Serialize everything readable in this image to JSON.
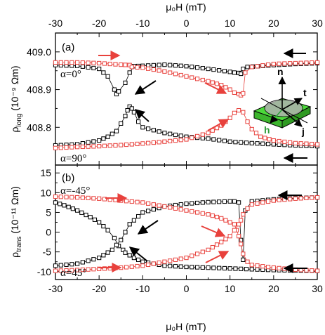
{
  "figure": {
    "x_axis_label_top": "μ₀H (mT)",
    "x_axis_label_bottom": "μ₀H (mT)",
    "colors": {
      "black_series": "#000000",
      "red_series": "#e8413c",
      "inset_green": "#4bd93a",
      "inset_grey": "#b0b0b0"
    }
  },
  "chart_data": [
    {
      "panel": "(a)",
      "type": "scatter",
      "xlabel": "μ₀H (mT)",
      "ylabel_main": "ρ",
      "ylabel_sub": "long",
      "ylabel_units": " (10⁻⁹ Ωm)",
      "xlim": [
        -30,
        30
      ],
      "ylim": [
        408.7,
        409.05
      ],
      "xticks": [
        "-30",
        "-20",
        "-10",
        "0",
        "10",
        "20",
        "30"
      ],
      "yticks": [
        {
          "value": 408.8,
          "label": "408.8"
        },
        {
          "value": 408.9,
          "label": "408.9"
        },
        {
          "value": 409.0,
          "label": "409.0"
        }
      ],
      "annotations": [
        {
          "text": "α=0°",
          "x": -28.5,
          "y": 408.92
        },
        {
          "text": "α=90°",
          "x": -28.5,
          "y": 408.705
        }
      ],
      "series": [
        {
          "color": "black",
          "marker": "open-square",
          "points": [
            [
              -30,
              408.965
            ],
            [
              -25,
              408.963
            ],
            [
              -20,
              408.955
            ],
            [
              -18,
              408.935
            ],
            [
              -16.5,
              408.9
            ],
            [
              -16,
              408.888
            ],
            [
              -15.5,
              408.895
            ],
            [
              -14,
              408.918
            ],
            [
              -13,
              408.945
            ],
            [
              -12,
              408.962
            ],
            [
              -10,
              408.963
            ],
            [
              -5,
              408.966
            ],
            [
              0,
              408.962
            ],
            [
              5,
              408.955
            ],
            [
              10,
              408.947
            ],
            [
              11,
              408.945
            ],
            [
              12,
              408.944
            ],
            [
              12.5,
              408.942
            ],
            [
              13,
              408.955
            ],
            [
              14,
              408.96
            ],
            [
              20,
              408.965
            ],
            [
              25,
              408.968
            ],
            [
              30,
              408.97
            ]
          ]
        },
        {
          "color": "red",
          "marker": "open-square",
          "points": [
            [
              -30,
              408.972
            ],
            [
              -25,
              408.972
            ],
            [
              -20,
              408.97
            ],
            [
              -15,
              408.966
            ],
            [
              -13,
              408.965
            ],
            [
              -12.5,
              408.96
            ],
            [
              -10,
              408.958
            ],
            [
              -5,
              408.948
            ],
            [
              0,
              408.935
            ],
            [
              5,
              408.922
            ],
            [
              8,
              408.912
            ],
            [
              10,
              408.9
            ],
            [
              11,
              408.892
            ],
            [
              12,
              408.888
            ],
            [
              12.5,
              408.885
            ],
            [
              13,
              408.89
            ],
            [
              13.5,
              408.945
            ],
            [
              15,
              408.96
            ],
            [
              20,
              408.968
            ],
            [
              25,
              408.97
            ],
            [
              30,
              408.972
            ]
          ]
        },
        {
          "color": "black",
          "marker": "open-square",
          "points": [
            [
              -30,
              408.752
            ],
            [
              -25,
              408.755
            ],
            [
              -20,
              408.765
            ],
            [
              -18,
              408.775
            ],
            [
              -16,
              408.79
            ],
            [
              -15,
              408.81
            ],
            [
              -14,
              408.83
            ],
            [
              -13.5,
              408.845
            ],
            [
              -13,
              408.855
            ],
            [
              -12.5,
              408.85
            ],
            [
              -12,
              408.84
            ],
            [
              -11,
              408.815
            ],
            [
              -10,
              408.8
            ],
            [
              -5,
              408.785
            ],
            [
              0,
              408.775
            ],
            [
              5,
              408.77
            ],
            [
              10,
              408.762
            ],
            [
              15,
              408.758
            ],
            [
              20,
              408.755
            ],
            [
              25,
              408.752
            ],
            [
              30,
              408.75
            ]
          ]
        },
        {
          "color": "red",
          "marker": "open-square",
          "points": [
            [
              -30,
              408.745
            ],
            [
              -25,
              408.748
            ],
            [
              -20,
              408.75
            ],
            [
              -15,
              408.753
            ],
            [
              -10,
              408.757
            ],
            [
              -5,
              408.762
            ],
            [
              0,
              408.768
            ],
            [
              5,
              408.785
            ],
            [
              8,
              408.805
            ],
            [
              10,
              408.825
            ],
            [
              11,
              408.838
            ],
            [
              12,
              408.845
            ],
            [
              13,
              408.84
            ],
            [
              14,
              408.815
            ],
            [
              15,
              408.795
            ],
            [
              17,
              408.775
            ],
            [
              20,
              408.765
            ],
            [
              25,
              408.758
            ],
            [
              30,
              408.755
            ]
          ]
        }
      ]
    },
    {
      "panel": "(b)",
      "type": "scatter",
      "xlabel": "μ₀H (mT)",
      "ylabel_main": "ρ",
      "ylabel_sub": "trans",
      "ylabel_units": " (10⁻¹¹ Ωm)",
      "xlim": [
        -30,
        30
      ],
      "ylim": [
        -12,
        17
      ],
      "xticks": [
        "-30",
        "-20",
        "-10",
        "0",
        "10",
        "20",
        "30"
      ],
      "yticks": [
        {
          "value": -10,
          "label": "-10"
        },
        {
          "value": -5,
          "label": "-5"
        },
        {
          "value": 0,
          "label": "0"
        },
        {
          "value": 5,
          "label": "5"
        },
        {
          "value": 10,
          "label": "10"
        },
        {
          "value": 15,
          "label": "15"
        }
      ],
      "annotations": [
        {
          "text": "α=-45°",
          "x": -28.5,
          "y": 11.5
        },
        {
          "text": "α=45°",
          "x": -28.5,
          "y": -12.0
        }
      ],
      "series": [
        {
          "color": "black",
          "marker": "open-square",
          "points": [
            [
              -30,
              7.5
            ],
            [
              -28,
              6.8
            ],
            [
              -25,
              5.5
            ],
            [
              -22,
              3.8
            ],
            [
              -20,
              2.5
            ],
            [
              -18,
              0.5
            ],
            [
              -16.5,
              -1.5
            ],
            [
              -15.5,
              -3.5
            ],
            [
              -14.5,
              -4.5
            ],
            [
              -14,
              -5.2
            ],
            [
              -12,
              -6.5
            ],
            [
              -10,
              -7.5
            ],
            [
              -5,
              -8.5
            ],
            [
              0,
              -8.8
            ],
            [
              5,
              -9.0
            ],
            [
              10,
              -9.2
            ],
            [
              15,
              -9.4
            ],
            [
              20,
              -9.6
            ],
            [
              25,
              -9.7
            ],
            [
              30,
              -9.8
            ]
          ]
        },
        {
          "color": "black",
          "marker": "open-square",
          "points": [
            [
              -30,
              -8.5
            ],
            [
              -25,
              -8.0
            ],
            [
              -20,
              -6.5
            ],
            [
              -17,
              -4.5
            ],
            [
              -15,
              -2.0
            ],
            [
              -14,
              0
            ],
            [
              -13,
              2.0
            ],
            [
              -11,
              4.0
            ],
            [
              -10,
              5.0
            ],
            [
              -5,
              6.5
            ],
            [
              0,
              7.2
            ],
            [
              5,
              7.6
            ],
            [
              10,
              7.8
            ],
            [
              11,
              7.8
            ],
            [
              12,
              7.5
            ],
            [
              12.5,
              -2.0
            ],
            [
              13,
              -7.0
            ],
            [
              13.5,
              5.5
            ],
            [
              15,
              7.8
            ],
            [
              20,
              8.3
            ],
            [
              25,
              8.6
            ],
            [
              30,
              8.8
            ]
          ]
        },
        {
          "color": "red",
          "marker": "open-square",
          "points": [
            [
              -30,
              9.0
            ],
            [
              -25,
              8.8
            ],
            [
              -20,
              8.5
            ],
            [
              -15,
              8.0
            ],
            [
              -10,
              7.5
            ],
            [
              -5,
              6.5
            ],
            [
              0,
              5.5
            ],
            [
              5,
              4.5
            ],
            [
              8,
              3.5
            ],
            [
              10,
              2.5
            ],
            [
              11,
              2.0
            ],
            [
              11.5,
              0.5
            ],
            [
              12,
              -1.0
            ],
            [
              12.5,
              -3.0
            ],
            [
              13,
              -5.5
            ],
            [
              14,
              -7.5
            ],
            [
              15,
              -8.3
            ],
            [
              20,
              -9.0
            ],
            [
              25,
              -9.5
            ],
            [
              30,
              -9.8
            ]
          ]
        },
        {
          "color": "red",
          "marker": "open-square",
          "points": [
            [
              -30,
              -9.8
            ],
            [
              -25,
              -9.6
            ],
            [
              -20,
              -9.3
            ],
            [
              -15,
              -9.0
            ],
            [
              -10,
              -8.5
            ],
            [
              -5,
              -7.5
            ],
            [
              0,
              -6.5
            ],
            [
              5,
              -4.5
            ],
            [
              8,
              -2.5
            ],
            [
              10,
              -1.0
            ],
            [
              11,
              0.5
            ],
            [
              12,
              2.0
            ],
            [
              12.5,
              3.0
            ],
            [
              13,
              4.5
            ],
            [
              14,
              6.0
            ],
            [
              15,
              7.0
            ],
            [
              20,
              8.0
            ],
            [
              25,
              8.5
            ],
            [
              30,
              8.8
            ]
          ]
        }
      ]
    }
  ],
  "inset": {
    "vector_n": "n",
    "vector_t": "t",
    "vector_h": "h",
    "vector_j": "j"
  }
}
